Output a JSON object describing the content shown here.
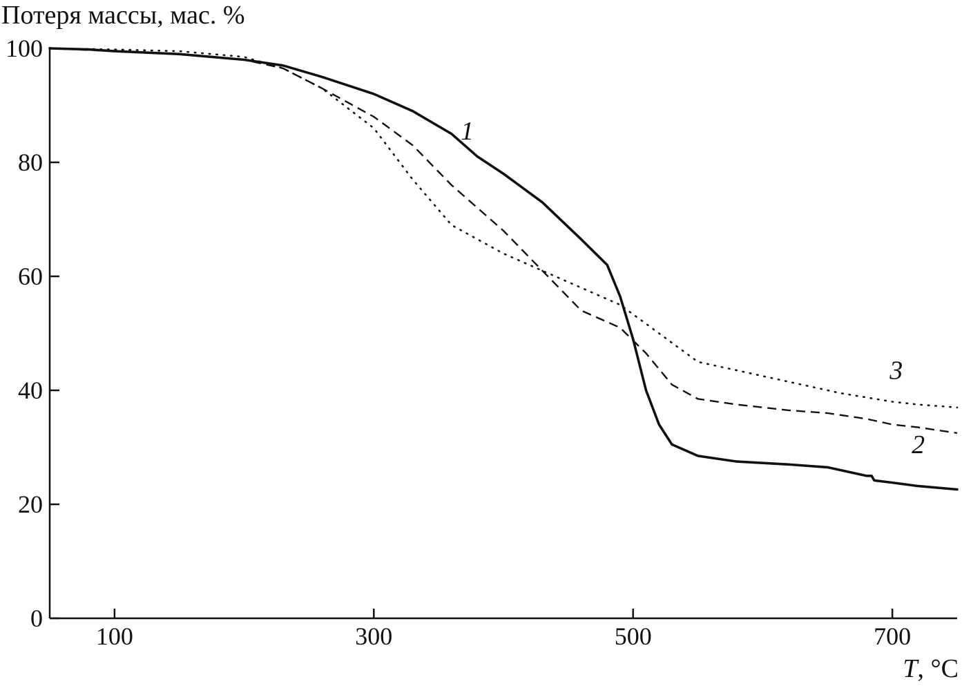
{
  "chart_data": {
    "type": "line",
    "ylabel": "Потеря массы, мас. %",
    "xlabel_var": "T",
    "xlabel_unit": ", °C",
    "xlim": [
      50,
      750
    ],
    "ylim": [
      0,
      100
    ],
    "xticks": [
      100,
      300,
      500,
      700
    ],
    "yticks": [
      0,
      20,
      40,
      60,
      80,
      100
    ],
    "xtick_labels": [
      "100",
      "300",
      "500",
      "700"
    ],
    "ytick_labels": [
      "0",
      "20",
      "40",
      "60",
      "80",
      "100"
    ],
    "grid": false,
    "series": [
      {
        "name": "1",
        "style": "solid",
        "x": [
          50,
          80,
          100,
          150,
          200,
          230,
          260,
          300,
          330,
          360,
          380,
          400,
          430,
          460,
          480,
          490,
          500,
          510,
          520,
          530,
          550,
          580,
          620,
          650,
          680,
          684,
          686,
          700,
          720,
          750
        ],
        "y": [
          100,
          99.8,
          99.5,
          99,
          98,
          97,
          95,
          92,
          89,
          85,
          81,
          78,
          73,
          66.5,
          62,
          56.5,
          49,
          40,
          34,
          30.5,
          28.5,
          27.5,
          27,
          26.5,
          25,
          25,
          24.2,
          23.8,
          23.2,
          22.6
        ]
      },
      {
        "name": "2",
        "style": "dashed",
        "x": [
          50,
          100,
          150,
          200,
          230,
          260,
          300,
          330,
          360,
          400,
          430,
          460,
          490,
          510,
          530,
          550,
          580,
          620,
          650,
          680,
          700,
          720,
          750
        ],
        "y": [
          100,
          99.5,
          99,
          98,
          96.5,
          93,
          88,
          83,
          76,
          68,
          61,
          54,
          51,
          46.5,
          41,
          38.5,
          37.5,
          36.5,
          36,
          35,
          34,
          33.5,
          32.5
        ]
      },
      {
        "name": "3",
        "style": "dotted",
        "x": [
          50,
          100,
          150,
          200,
          230,
          260,
          300,
          330,
          360,
          400,
          430,
          460,
          490,
          520,
          550,
          580,
          620,
          660,
          700,
          720,
          750
        ],
        "y": [
          100,
          99.8,
          99.5,
          98.5,
          96.5,
          93,
          86,
          77,
          69,
          64,
          61,
          58,
          55,
          50,
          45,
          43.5,
          41.5,
          39.5,
          38,
          37.5,
          37
        ]
      }
    ],
    "annotations": [
      {
        "text": "1",
        "x": 372,
        "y": 84
      },
      {
        "text": "2",
        "x": 720,
        "y": 29
      },
      {
        "text": "3",
        "x": 703,
        "y": 42
      }
    ]
  }
}
